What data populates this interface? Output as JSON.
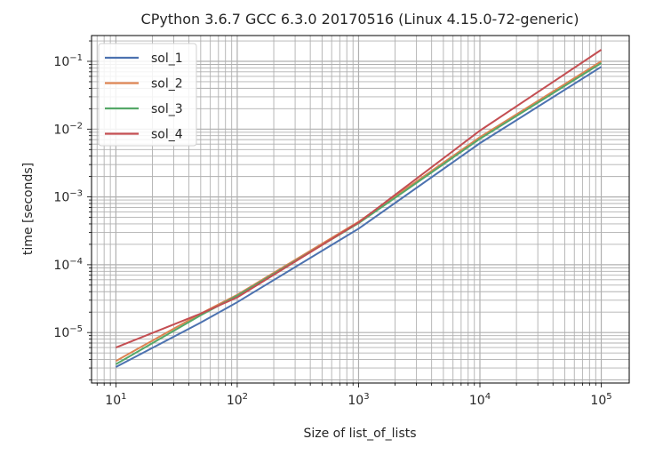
{
  "chart_data": {
    "type": "line",
    "title": "CPython 3.6.7 GCC 6.3.0 20170516 (Linux 4.15.0-72-generic)",
    "xlabel": "Size of list_of_lists",
    "ylabel": "time [seconds]",
    "xscale": "log",
    "yscale": "log",
    "xlim": [
      6.3,
      170000
    ],
    "ylim": [
      1.8e-06,
      0.24
    ],
    "grid": "major and minor",
    "legend_placement": "top-left",
    "x_ticks": [
      {
        "value": 10,
        "base": "10",
        "exp": "1"
      },
      {
        "value": 100,
        "base": "10",
        "exp": "2"
      },
      {
        "value": 1000,
        "base": "10",
        "exp": "3"
      },
      {
        "value": 10000,
        "base": "10",
        "exp": "4"
      },
      {
        "value": 100000,
        "base": "10",
        "exp": "5"
      }
    ],
    "y_ticks": [
      {
        "value": 0.1,
        "base": "10",
        "exp": "−1"
      },
      {
        "value": 0.01,
        "base": "10",
        "exp": "−2"
      },
      {
        "value": 0.001,
        "base": "10",
        "exp": "−3"
      },
      {
        "value": 0.0001,
        "base": "10",
        "exp": "−4"
      },
      {
        "value": 1e-05,
        "base": "10",
        "exp": "−5"
      }
    ],
    "x": [
      10,
      50,
      100,
      1000,
      10000,
      100000
    ],
    "series": [
      {
        "name": "sol_1",
        "color": "#4c72b0",
        "values": [
          3.1e-06,
          1.4e-05,
          2.8e-05,
          0.00034,
          0.0062,
          0.083
        ]
      },
      {
        "name": "sol_2",
        "color": "#dd8452",
        "values": [
          3.8e-06,
          1.9e-05,
          3.6e-05,
          0.00043,
          0.0076,
          0.1
        ]
      },
      {
        "name": "sol_3",
        "color": "#55a868",
        "values": [
          3.4e-06,
          1.8e-05,
          3.5e-05,
          0.00041,
          0.0072,
          0.094
        ]
      },
      {
        "name": "sol_4",
        "color": "#c44e52",
        "values": [
          6e-06,
          1.9e-05,
          3.3e-05,
          0.00042,
          0.0095,
          0.148
        ]
      }
    ]
  }
}
